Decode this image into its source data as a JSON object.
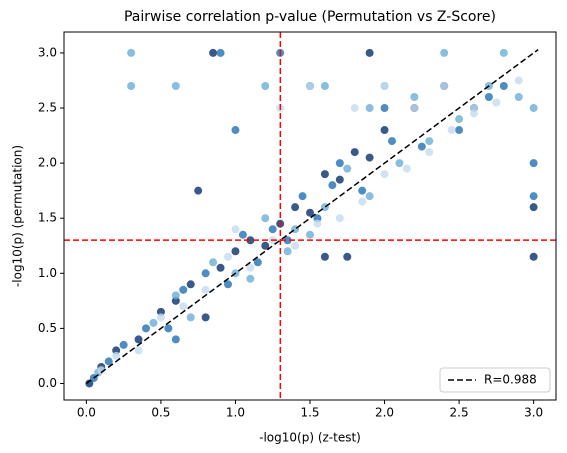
{
  "chart_data": {
    "type": "scatter",
    "title": "Pairwise correlation p-value (Permutation vs Z-Score)",
    "x_label": "-log10(p) (z-test)",
    "y_label": "-log10(p) (permutation)",
    "xlim": [
      -0.15,
      3.15
    ],
    "ylim": [
      -0.15,
      3.19
    ],
    "xticks": [
      {
        "value": 0,
        "label": "0.0"
      },
      0.5,
      {
        "value": 1,
        "label": "1.0"
      },
      1.5,
      {
        "value": 2,
        "label": "2.0"
      },
      2.5,
      {
        "value": 3,
        "label": "3.0"
      }
    ],
    "yticks": [
      {
        "value": 0,
        "label": "0.0"
      },
      0.5,
      {
        "value": 1,
        "label": "1.0"
      },
      1.5,
      {
        "value": 2,
        "label": "2.0"
      },
      2.5,
      {
        "value": 3,
        "label": "3.0"
      }
    ],
    "legend": "lower right",
    "series": [
      {
        "color": "#08306b",
        "x": [
          0.02,
          0.1,
          0.2,
          0.35,
          0.5,
          0.6,
          0.7,
          0.8,
          0.9,
          1.0,
          1.1,
          1.2,
          1.3,
          1.4,
          1.5,
          1.6,
          1.7,
          1.8,
          1.9,
          2.0,
          2.2,
          2.4,
          0.75,
          0.85,
          1.9,
          2.6,
          3.0,
          3.0,
          1.6,
          1.75
        ],
        "values": [
          0.0,
          0.15,
          0.3,
          0.4,
          0.65,
          0.75,
          0.9,
          0.6,
          1.05,
          1.2,
          1.3,
          1.25,
          1.45,
          1.6,
          1.55,
          1.9,
          1.85,
          2.1,
          2.05,
          2.3,
          2.5,
          2.7,
          1.75,
          3.0,
          3.0,
          2.5,
          1.15,
          1.6,
          1.15,
          1.15
        ]
      },
      {
        "color": "#2171b5",
        "x": [
          0.05,
          0.15,
          0.25,
          0.4,
          0.55,
          0.65,
          0.8,
          0.95,
          1.05,
          1.15,
          1.25,
          1.35,
          1.45,
          1.55,
          1.65,
          1.85,
          2.05,
          2.25,
          2.5,
          2.7,
          0.9,
          1.3,
          1.5,
          2.0,
          2.8,
          3.0,
          3.0,
          1.0,
          0.6,
          1.7
        ],
        "values": [
          0.05,
          0.2,
          0.35,
          0.5,
          0.5,
          0.85,
          1.0,
          0.9,
          1.35,
          1.1,
          1.4,
          1.3,
          1.7,
          1.5,
          1.8,
          1.75,
          2.2,
          2.15,
          2.3,
          2.6,
          3.0,
          3.0,
          2.7,
          2.5,
          2.7,
          2.0,
          1.7,
          2.3,
          0.4,
          2.0
        ]
      },
      {
        "color": "#6baed6",
        "x": [
          0.08,
          0.3,
          0.3,
          0.45,
          0.6,
          0.7,
          0.85,
          1.0,
          1.1,
          1.2,
          1.35,
          1.5,
          1.6,
          1.75,
          1.9,
          2.1,
          2.3,
          2.5,
          2.7,
          2.9,
          1.2,
          1.6,
          2.0,
          2.4,
          2.8,
          3.0,
          0.6,
          1.9,
          2.2,
          1.4
        ],
        "values": [
          0.1,
          3.0,
          2.7,
          0.55,
          0.8,
          0.6,
          1.1,
          1.0,
          0.95,
          1.5,
          1.2,
          1.35,
          1.6,
          1.95,
          1.7,
          2.0,
          2.2,
          2.4,
          2.7,
          2.6,
          2.7,
          2.7,
          2.7,
          3.0,
          3.0,
          2.5,
          2.7,
          2.5,
          2.6,
          1.4
        ]
      },
      {
        "color": "#c6dbef",
        "x": [
          0.1,
          0.2,
          0.35,
          0.5,
          0.65,
          0.8,
          0.95,
          1.1,
          1.25,
          1.4,
          1.55,
          1.7,
          1.85,
          2.0,
          2.15,
          2.3,
          2.45,
          2.6,
          2.75,
          2.9,
          1.3,
          1.8,
          2.2,
          2.6,
          1.0,
          1.5,
          2.0,
          2.4
        ],
        "values": [
          0.12,
          0.25,
          0.3,
          0.6,
          0.7,
          0.85,
          1.15,
          1.05,
          1.3,
          1.25,
          1.45,
          1.5,
          1.65,
          1.9,
          1.95,
          2.1,
          2.3,
          2.45,
          2.55,
          2.75,
          2.5,
          2.5,
          2.5,
          2.5,
          1.4,
          2.7,
          2.7,
          2.7
        ]
      }
    ],
    "lines": [
      {
        "name": "R=0.988",
        "color": "#000000",
        "x": [
          0,
          3.03
        ],
        "values": [
          0,
          3.03
        ]
      }
    ],
    "reference_lines": {
      "color": "#ff0000",
      "x": 1.301,
      "y": 1.301
    }
  }
}
